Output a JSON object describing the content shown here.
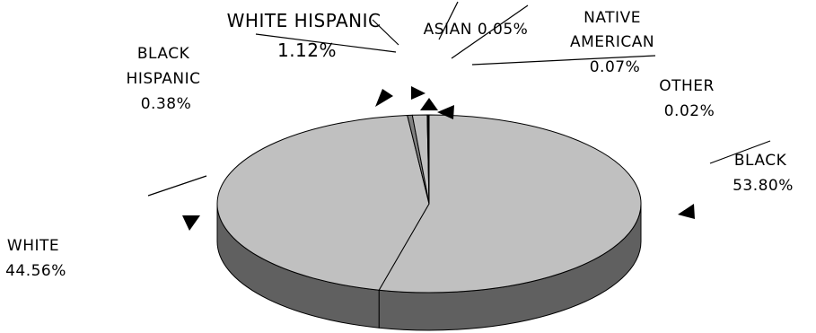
{
  "chart_data": {
    "type": "pie",
    "style": "3d",
    "title": "",
    "slices": [
      {
        "label_lines": [
          "BLACK",
          "53.80%"
        ],
        "category": "BLACK",
        "value": 53.8,
        "color": "#c0c0c0"
      },
      {
        "label_lines": [
          "WHITE",
          "44.56%"
        ],
        "category": "WHITE",
        "value": 44.56,
        "color": "#c0c0c0"
      },
      {
        "label_lines": [
          "BLACK",
          "HISPANIC",
          "0.38%"
        ],
        "category": "BLACK HISPANIC",
        "value": 0.38,
        "color": "#808080"
      },
      {
        "label_lines": [
          "WHITE HISPANIC",
          "1.12%"
        ],
        "category": "WHITE HISPANIC",
        "value": 1.12,
        "color": "#c0c0c0"
      },
      {
        "label_lines": [
          "ASIAN 0.05%"
        ],
        "category": "ASIAN",
        "value": 0.05,
        "color": "#c0c0c0"
      },
      {
        "label_lines": [
          "NATIVE",
          "AMERICAN",
          "0.07%"
        ],
        "category": "NATIVE AMERICAN",
        "value": 0.07,
        "color": "#c0c0c0"
      },
      {
        "label_lines": [
          "OTHER",
          "0.02%"
        ],
        "category": "OTHER",
        "value": 0.02,
        "color": "#c0c0c0"
      }
    ],
    "legend": "none",
    "edge_color": "#000000",
    "side_color": "#606060"
  }
}
